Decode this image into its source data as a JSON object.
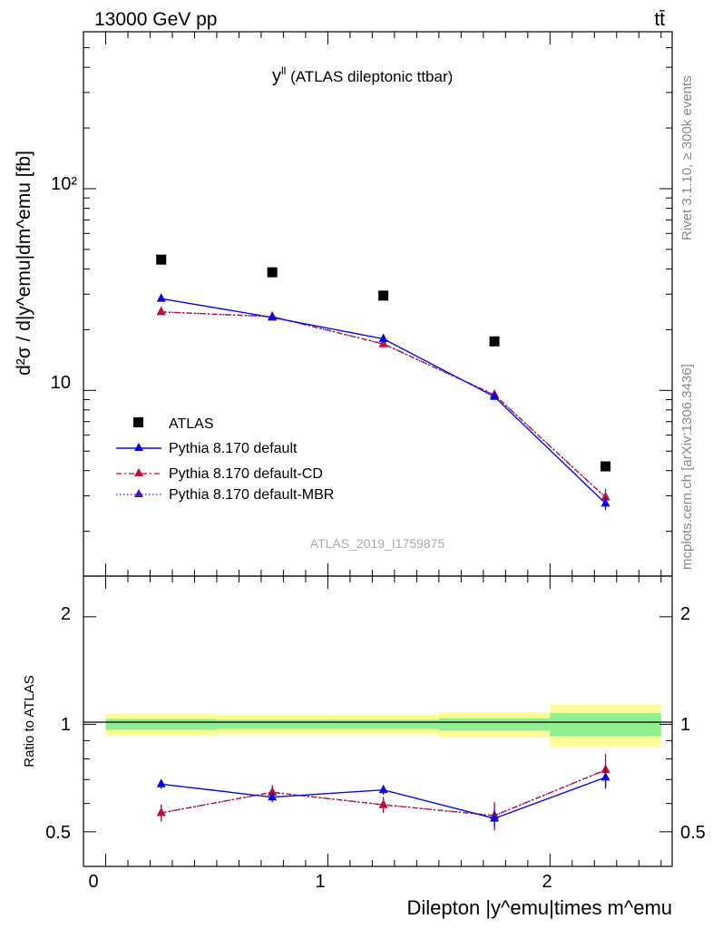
{
  "header": {
    "energy_label": "13000 GeV pp",
    "process_label": "tt̄"
  },
  "side_labels": {
    "rivet": "Rivet 3.1.10, ≥ 300k events",
    "mcplots": "mcplots.cern.ch [arXiv:1306.3436]"
  },
  "chart_data": [
    {
      "type": "scatter",
      "title": "y^ll (ATLAS dileptonic ttbar)",
      "title_main": "y",
      "title_sup": "ll",
      "title_rest": " (ATLAS dileptonic ttbar)",
      "ylabel": "d²σ / d|y^emu|dm^emu [fb]",
      "xlim": [
        -0.1,
        2.55
      ],
      "ylim": [
        1.2,
        600
      ],
      "log_y": true,
      "y_tick_labels": [
        "10",
        "10²"
      ],
      "watermark": "ATLAS_2019_I1759875",
      "legend_position": "bottom-left",
      "x": [
        0.25,
        0.75,
        1.25,
        1.75,
        2.25
      ],
      "series": [
        {
          "name": "ATLAS",
          "values": [
            44.5,
            38.5,
            29.5,
            17.5,
            4.2
          ],
          "color": "#000000",
          "style": "data"
        },
        {
          "name": "Pythia 8.170 default",
          "values": [
            28.5,
            23.0,
            18.0,
            9.3,
            2.75
          ],
          "errors": [
            0.6,
            0.5,
            0.5,
            0.3,
            0.2
          ],
          "color": "#0a0ad4",
          "style": "solid"
        },
        {
          "name": "Pythia 8.170 default-CD",
          "values": [
            24.5,
            23.2,
            17.0,
            9.5,
            2.95
          ],
          "errors": [
            0.6,
            0.5,
            0.5,
            0.5,
            0.3
          ],
          "color": "#b5123c",
          "style": "dashdot"
        },
        {
          "name": "Pythia 8.170 default-MBR",
          "values": [
            24.5,
            23.2,
            17.0,
            9.5,
            2.95
          ],
          "errors": [
            0.6,
            0.5,
            0.5,
            0.5,
            0.3
          ],
          "color": "#4b12b0",
          "style": "dotted"
        }
      ]
    },
    {
      "type": "scatter",
      "ylabel": "Ratio to ATLAS",
      "xlabel": "Dilepton |y^emu|times m^emu",
      "xlim": [
        -0.1,
        2.55
      ],
      "ylim": [
        0.4,
        2.6
      ],
      "log_y": true,
      "x_ticks": [
        0,
        1,
        2
      ],
      "y_ticks": [
        0.5,
        1,
        2
      ],
      "x_tick_labels": [
        "0",
        "1",
        "2"
      ],
      "y_tick_labels": [
        "0.5",
        "1",
        "2"
      ],
      "bins": [
        [
          0,
          0.5
        ],
        [
          0.5,
          1.0
        ],
        [
          1.0,
          1.5
        ],
        [
          1.5,
          2.0
        ],
        [
          2.0,
          2.5
        ]
      ],
      "band_inner": [
        0.035,
        0.03,
        0.03,
        0.04,
        0.075
      ],
      "band_outer": [
        0.07,
        0.065,
        0.065,
        0.08,
        0.135
      ],
      "band_colors": {
        "inner": "#90ee90",
        "outer": "#fdfd96"
      },
      "x": [
        0.25,
        0.75,
        1.25,
        1.75,
        2.25
      ],
      "series": [
        {
          "name": "Pythia 8.170 default",
          "values": [
            0.68,
            0.625,
            0.655,
            0.545,
            0.71
          ],
          "errors": [
            0.02,
            0.02,
            0.02,
            0.03,
            0.05
          ],
          "color": "#0a0ad4",
          "style": "solid"
        },
        {
          "name": "Pythia 8.170 default-CD",
          "values": [
            0.565,
            0.645,
            0.595,
            0.555,
            0.745
          ],
          "errors": [
            0.03,
            0.03,
            0.03,
            0.05,
            0.08
          ],
          "color": "#b5123c",
          "style": "dashdot"
        },
        {
          "name": "Pythia 8.170 default-MBR",
          "values": [
            0.565,
            0.645,
            0.595,
            0.555,
            0.745
          ],
          "errors": [
            0.03,
            0.03,
            0.03,
            0.05,
            0.08
          ],
          "color": "#4b12b0",
          "style": "dotted"
        }
      ]
    }
  ]
}
